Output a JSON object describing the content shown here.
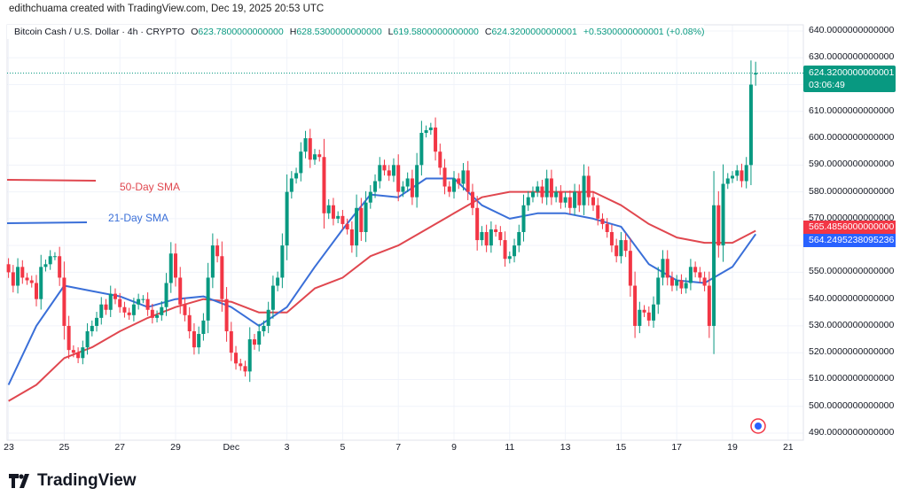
{
  "credit": "edithchuama created with TradingView.com, Dec 19, 2025 20:53 UTC",
  "legend": {
    "symbol": "Bitcoin Cash / U.S. Dollar · 4h · CRYPTO",
    "open_label": "O",
    "open": "623.7800000000000",
    "high_label": "H",
    "high": "628.5300000000000",
    "low_label": "L",
    "low": "619.5800000000000",
    "close_label": "C",
    "close": "624.3200000000001",
    "change": "+0.5300000000001 (+0.08%)"
  },
  "price_labels": {
    "current_price": "624.3200000000001",
    "countdown": "03:06:49",
    "sma50_value": "565.4856000000000",
    "sma21_value": "564.2495238095236"
  },
  "colors": {
    "up": "#089981",
    "down": "#f23645",
    "sma50": "#e0474f",
    "sma21": "#3a6fd8",
    "grid": "#f0f3fa"
  },
  "logo": {
    "text": "TradingView",
    "icon": "tradingview-logo-icon"
  },
  "chart_data": {
    "type": "candlestick",
    "interval": "4h",
    "ylim": [
      490,
      640
    ],
    "grid": true,
    "y_ticks": [
      "640.0000000000000",
      "630.0000000000000",
      "610.0000000000000",
      "600.0000000000000",
      "590.0000000000000",
      "580.0000000000000",
      "570.0000000000000",
      "550.0000000000000",
      "540.0000000000000",
      "530.0000000000000",
      "520.0000000000000",
      "510.0000000000000",
      "500.0000000000000",
      "490.0000000000000"
    ],
    "x_ticks": [
      {
        "label": "23",
        "date": "2025-11-23"
      },
      {
        "label": "25",
        "date": "2025-11-25"
      },
      {
        "label": "27",
        "date": "2025-11-27"
      },
      {
        "label": "29",
        "date": "2025-11-29"
      },
      {
        "label": "Dec",
        "date": "2025-12-01"
      },
      {
        "label": "3",
        "date": "2025-12-03"
      },
      {
        "label": "5",
        "date": "2025-12-05"
      },
      {
        "label": "7",
        "date": "2025-12-07"
      },
      {
        "label": "9",
        "date": "2025-12-09"
      },
      {
        "label": "11",
        "date": "2025-12-11"
      },
      {
        "label": "13",
        "date": "2025-12-13"
      },
      {
        "label": "15",
        "date": "2025-12-15"
      },
      {
        "label": "17",
        "date": "2025-12-17"
      },
      {
        "label": "19",
        "date": "2025-12-19"
      },
      {
        "label": "21",
        "date": "2025-12-21"
      }
    ],
    "closes_by_day": [
      {
        "date": "2025-11-23",
        "c": [
          550,
          545,
          552,
          548,
          547,
          546
        ]
      },
      {
        "date": "2025-11-24",
        "c": [
          540,
          552,
          553,
          556,
          556,
          548
        ]
      },
      {
        "date": "2025-11-25",
        "c": [
          530,
          521,
          520,
          518,
          522,
          528
        ]
      },
      {
        "date": "2025-11-26",
        "c": [
          530,
          533,
          538,
          536,
          542,
          540
        ]
      },
      {
        "date": "2025-11-27",
        "c": [
          537,
          535,
          534,
          538,
          540,
          540
        ]
      },
      {
        "date": "2025-11-28",
        "c": [
          536,
          533,
          534,
          537,
          546,
          557
        ]
      },
      {
        "date": "2025-11-29",
        "c": [
          548,
          538,
          534,
          528,
          522,
          527
        ]
      },
      {
        "date": "2025-11-30",
        "c": [
          532,
          548,
          560,
          556,
          540,
          528
        ]
      },
      {
        "date": "2025-12-01",
        "c": [
          520,
          516,
          515,
          513,
          525,
          523
        ]
      },
      {
        "date": "2025-12-02",
        "c": [
          528,
          530,
          536,
          545,
          548,
          560
        ]
      },
      {
        "date": "2025-12-03",
        "c": [
          580,
          585,
          587,
          595,
          600,
          592
        ]
      },
      {
        "date": "2025-12-04",
        "c": [
          594,
          593,
          572,
          575,
          570,
          571
        ]
      },
      {
        "date": "2025-12-05",
        "c": [
          568,
          566,
          560,
          574,
          565,
          576
        ]
      },
      {
        "date": "2025-12-06",
        "c": [
          580,
          584,
          590,
          588,
          586,
          590
        ]
      },
      {
        "date": "2025-12-07",
        "c": [
          580,
          582,
          585,
          578,
          590,
          602
        ]
      },
      {
        "date": "2025-12-08",
        "c": [
          603,
          604,
          595,
          589,
          582,
          580
        ]
      },
      {
        "date": "2025-12-09",
        "c": [
          585,
          583,
          588,
          580,
          574,
          562
        ]
      },
      {
        "date": "2025-12-10",
        "c": [
          565,
          560,
          566,
          565,
          562,
          555
        ]
      },
      {
        "date": "2025-12-11",
        "c": [
          556,
          560,
          565,
          575,
          578,
          580
        ]
      },
      {
        "date": "2025-12-12",
        "c": [
          582,
          578,
          585,
          578,
          580,
          576
        ]
      },
      {
        "date": "2025-12-13",
        "c": [
          578,
          574,
          580,
          575,
          586,
          578
        ]
      },
      {
        "date": "2025-12-14",
        "c": [
          575,
          570,
          568,
          565,
          560,
          556
        ]
      },
      {
        "date": "2025-12-15",
        "c": [
          562,
          558,
          545,
          530,
          536,
          535
        ]
      },
      {
        "date": "2025-12-16",
        "c": [
          532,
          538,
          548,
          555,
          548,
          545
        ]
      },
      {
        "date": "2025-12-17",
        "c": [
          547,
          544,
          546,
          552,
          550,
          548
        ]
      },
      {
        "date": "2025-12-18",
        "c": [
          545,
          530,
          575,
          560,
          583,
          585
        ]
      },
      {
        "date": "2025-12-19",
        "c": [
          586,
          588,
          584,
          590,
          620,
          624.32
        ]
      }
    ],
    "last_candle": {
      "o": 623.78,
      "h": 628.53,
      "l": 619.58,
      "c": 624.32
    },
    "series": [
      {
        "name": "50-Day SMA",
        "color": "#e0474f",
        "values": [
          502,
          508,
          518,
          522,
          528,
          533,
          537,
          540,
          539,
          535,
          535,
          544,
          548,
          556,
          560,
          566,
          572,
          578,
          580,
          580,
          580,
          580,
          575,
          568,
          563,
          561,
          561,
          565.4856
        ]
      },
      {
        "name": "21-Day SMA",
        "color": "#3a6fd8",
        "values": [
          508,
          530,
          545,
          543,
          541,
          537,
          540,
          541,
          537,
          530,
          537,
          552,
          566,
          579,
          578,
          585,
          585,
          575,
          570,
          572,
          572,
          570,
          567,
          553,
          547,
          546,
          552,
          564.2495
        ]
      }
    ],
    "series_dates": [
      "2025-11-23",
      "2025-11-24",
      "2025-11-25",
      "2025-11-26",
      "2025-11-27",
      "2025-11-28",
      "2025-11-29",
      "2025-11-30",
      "2025-12-01",
      "2025-12-02",
      "2025-12-03",
      "2025-12-04",
      "2025-12-05",
      "2025-12-06",
      "2025-12-07",
      "2025-12-08",
      "2025-12-09",
      "2025-12-10",
      "2025-12-11",
      "2025-12-12",
      "2025-12-13",
      "2025-12-14",
      "2025-12-15",
      "2025-12-16",
      "2025-12-17",
      "2025-12-18",
      "2025-12-19",
      "2025-12-19T20:00"
    ]
  }
}
